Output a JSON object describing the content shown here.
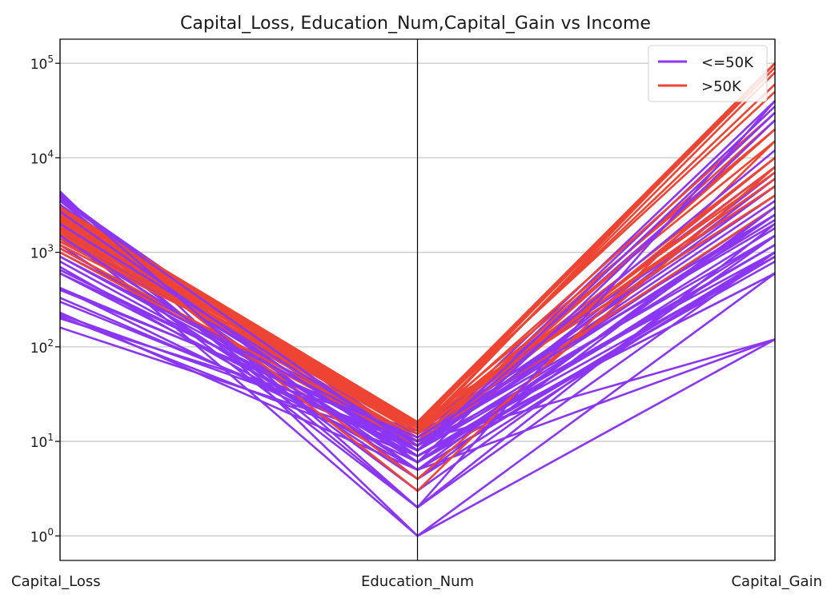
{
  "chart_data": {
    "type": "line",
    "subtype": "parallel-coordinates",
    "title": "Capital_Loss, Education_Num,Capital_Gain vs Income",
    "axes": [
      "Capital_Loss",
      "Education_Num",
      "Capital_Gain"
    ],
    "yscale": "log",
    "ylim": [
      0.55,
      180000
    ],
    "yticks": [
      {
        "value": 1,
        "base": "10",
        "exp": "0"
      },
      {
        "value": 10,
        "base": "10",
        "exp": "1"
      },
      {
        "value": 100,
        "base": "10",
        "exp": "2"
      },
      {
        "value": 1000,
        "base": "10",
        "exp": "3"
      },
      {
        "value": 10000,
        "base": "10",
        "exp": "4"
      },
      {
        "value": 100000,
        "base": "10",
        "exp": "5"
      }
    ],
    "grid": true,
    "legend": {
      "placement": "top-right",
      "entries": [
        {
          "label": "<=50K",
          "color": "#8b35f5"
        },
        {
          "label": ">50K",
          "color": "#ee4433"
        }
      ]
    },
    "series": [
      {
        "name": "<=50K",
        "color": "#8b35f5",
        "lines": [
          [
            4400,
            1,
            600
          ],
          [
            4000,
            6,
            2500
          ],
          [
            3800,
            9,
            35000
          ],
          [
            3500,
            4,
            3000
          ],
          [
            3000,
            10,
            40000
          ],
          [
            2800,
            7,
            1200
          ],
          [
            2500,
            2,
            2000
          ],
          [
            2200,
            5,
            900
          ],
          [
            2000,
            3,
            1500
          ],
          [
            1900,
            9,
            5000
          ],
          [
            1700,
            8,
            7000
          ],
          [
            1500,
            10,
            3500
          ],
          [
            1400,
            6,
            800
          ],
          [
            1200,
            4,
            1000
          ],
          [
            1100,
            9,
            2500
          ],
          [
            1000,
            11,
            4000
          ],
          [
            900,
            8,
            1800
          ],
          [
            800,
            7,
            600
          ],
          [
            700,
            5,
            1000
          ],
          [
            650,
            9,
            3000
          ],
          [
            600,
            10,
            20000
          ],
          [
            420,
            6,
            1500
          ],
          [
            400,
            12,
            2000
          ],
          [
            330,
            8,
            1200
          ],
          [
            300,
            9,
            10000
          ],
          [
            230,
            5,
            120
          ],
          [
            220,
            10,
            120
          ],
          [
            210,
            7,
            600
          ],
          [
            200,
            13,
            2500
          ],
          [
            160,
            9,
            1000
          ],
          [
            1800,
            1,
            120
          ],
          [
            1600,
            2,
            1000
          ],
          [
            3200,
            8,
            6000
          ],
          [
            2400,
            12,
            8000
          ],
          [
            1300,
            14,
            5000
          ]
        ]
      },
      {
        "name": ">50K",
        "color": "#ee4433",
        "lines": [
          [
            3000,
            16,
            100000
          ],
          [
            2900,
            15,
            90000
          ],
          [
            2800,
            14,
            100000
          ],
          [
            2700,
            13,
            80000
          ],
          [
            2600,
            16,
            100000
          ],
          [
            2500,
            15,
            60000
          ],
          [
            2400,
            14,
            100000
          ],
          [
            2300,
            13,
            30000
          ],
          [
            2200,
            12,
            100000
          ],
          [
            2100,
            16,
            50000
          ],
          [
            2000,
            15,
            100000
          ],
          [
            1900,
            14,
            20000
          ],
          [
            1800,
            13,
            15000
          ],
          [
            1700,
            12,
            10000
          ],
          [
            1600,
            11,
            8000
          ],
          [
            1500,
            14,
            7000
          ],
          [
            1400,
            13,
            6000
          ],
          [
            1300,
            16,
            5000
          ],
          [
            1200,
            15,
            4000
          ],
          [
            1100,
            10,
            3000
          ],
          [
            1000,
            9,
            10000
          ],
          [
            2900,
            3,
            15000
          ],
          [
            2500,
            4,
            8000
          ],
          [
            2000,
            10,
            25000
          ],
          [
            1800,
            9,
            20000
          ]
        ]
      },
      {
        "name": "<=50K",
        "color": "#8b35f5",
        "lines": [
          [
            4200,
            2,
            40000
          ],
          [
            3600,
            8,
            30000
          ],
          [
            2700,
            6,
            25000
          ],
          [
            2000,
            9,
            12000
          ],
          [
            1500,
            5,
            3000
          ],
          [
            900,
            10,
            1500
          ],
          [
            600,
            7,
            900
          ],
          [
            420,
            11,
            2200
          ]
        ]
      }
    ]
  }
}
